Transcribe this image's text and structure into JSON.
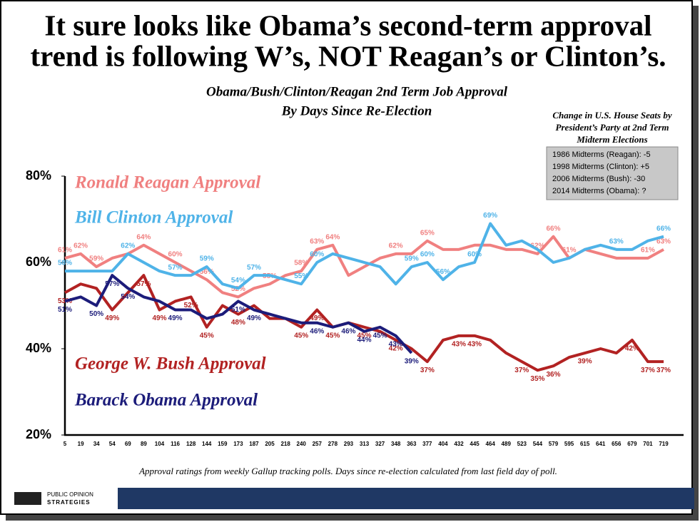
{
  "header": {
    "title": [
      "It sure looks like Obama’s second-term approval",
      "trend is following W’s, NOT Reagan’s or Clinton’s."
    ]
  },
  "chart_data": {
    "type": "line",
    "subtitle": [
      "Obama/Bush/Clinton/Reagan 2nd Term Job Approval",
      "By Days Since Re-Election"
    ],
    "categories": [
      5,
      19,
      34,
      54,
      69,
      89,
      104,
      116,
      128,
      144,
      159,
      173,
      187,
      205,
      218,
      240,
      257,
      278,
      293,
      313,
      327,
      348,
      363,
      377,
      404,
      432,
      445,
      464,
      489,
      523,
      544,
      579,
      595,
      615,
      641,
      656,
      679,
      701,
      719
    ],
    "ylim": [
      20,
      80
    ],
    "yticks": [
      {
        "value": 20,
        "label": "20%"
      },
      {
        "value": 40,
        "label": "40%"
      },
      {
        "value": 60,
        "label": "60%"
      },
      {
        "value": 80,
        "label": "80%"
      }
    ],
    "series": [
      {
        "name": "Ronald Reagan Approval",
        "color": "#f08080",
        "values": [
          61,
          62,
          59,
          61,
          62,
          64,
          62,
          60,
          58,
          56,
          53,
          52,
          54,
          55,
          57,
          58,
          63,
          64,
          57,
          59,
          61,
          62,
          62,
          65,
          63,
          63,
          64,
          64,
          63,
          63,
          62,
          66,
          61,
          63,
          62,
          61,
          61,
          61,
          63
        ],
        "value_labels": [
          "61%",
          "62%",
          "59%",
          null,
          null,
          "64%",
          null,
          "60%",
          null,
          "56%",
          null,
          "52%",
          null,
          "55%",
          null,
          "58%",
          "63%",
          "64%",
          null,
          null,
          null,
          "62%",
          null,
          "65%",
          null,
          null,
          null,
          null,
          null,
          null,
          "62%",
          "66%",
          "61%",
          null,
          null,
          null,
          null,
          "61%",
          "63%"
        ]
      },
      {
        "name": "Bill Clinton Approval",
        "color": "#4fb3e8",
        "values": [
          58,
          58,
          58,
          58,
          62,
          60,
          58,
          57,
          57,
          59,
          55,
          54,
          57,
          57,
          56,
          55,
          60,
          62,
          61,
          60,
          59,
          55,
          59,
          60,
          56,
          59,
          60,
          69,
          64,
          65,
          63,
          60,
          61,
          63,
          64,
          63,
          63,
          65,
          66
        ],
        "value_labels": [
          "58%",
          null,
          null,
          null,
          "62%",
          null,
          null,
          "57%",
          null,
          "59%",
          null,
          "54%",
          "57%",
          null,
          null,
          "55%",
          "60%",
          null,
          null,
          null,
          null,
          null,
          "59%",
          "60%",
          "56%",
          null,
          "60%",
          "69%",
          null,
          null,
          null,
          null,
          null,
          null,
          null,
          "63%",
          null,
          null,
          "66%"
        ]
      },
      {
        "name": "George W. Bush Approval",
        "color": "#b22222",
        "values": [
          53,
          55,
          54,
          49,
          53,
          57,
          49,
          51,
          52,
          45,
          50,
          48,
          50,
          47,
          47,
          45,
          49,
          45,
          46,
          45,
          44,
          42,
          40,
          37,
          42,
          43,
          43,
          42,
          39,
          37,
          35,
          36,
          38,
          39,
          40,
          39,
          42,
          37,
          37
        ],
        "value_labels": [
          "53%",
          null,
          null,
          "49%",
          null,
          "57%",
          "49%",
          null,
          "52%",
          "45%",
          null,
          "48%",
          null,
          null,
          null,
          "45%",
          "49%",
          "45%",
          null,
          "45%",
          null,
          "42%",
          null,
          "37%",
          null,
          "43%",
          "43%",
          null,
          null,
          "37%",
          "35%",
          "36%",
          null,
          "39%",
          null,
          null,
          "42%",
          "37%",
          "37%"
        ]
      },
      {
        "name": "Barack Obama Approval",
        "color": "#1c1c7a",
        "values": [
          51,
          52,
          50,
          57,
          54,
          52,
          51,
          49,
          49,
          47,
          48,
          51,
          49,
          48,
          47,
          46,
          46,
          45,
          46,
          44,
          45,
          43,
          39,
          null,
          null,
          null,
          null,
          null,
          null,
          null,
          null,
          null,
          null,
          null,
          null,
          null,
          null,
          null,
          null
        ],
        "value_labels": [
          "51%",
          null,
          "50%",
          "57%",
          "54%",
          null,
          null,
          "49%",
          null,
          null,
          null,
          "51%",
          "49%",
          null,
          null,
          null,
          "46%",
          null,
          "46%",
          "44%",
          "45%",
          "43%",
          "39%",
          null,
          null,
          null,
          null,
          null,
          null,
          null,
          null,
          null,
          null,
          null,
          null,
          null,
          null,
          null,
          null
        ]
      }
    ]
  },
  "inset": {
    "title": [
      "Change in U.S. House Seats by",
      "President’s Party at 2nd Term",
      "Midterm Elections"
    ],
    "rows": [
      "1986 Midterms (Reagan): -5",
      "1998 Midterms (Clinton): +5",
      "2006 Midterms (Bush): -30",
      "2014 Midterms (Obama): ?"
    ]
  },
  "footer": {
    "note": "Approval ratings from weekly Gallup tracking polls. Days since re-election calculated from last field day of poll.",
    "logo": [
      "PUBLIC OPINION",
      "STRATEGIES"
    ]
  }
}
